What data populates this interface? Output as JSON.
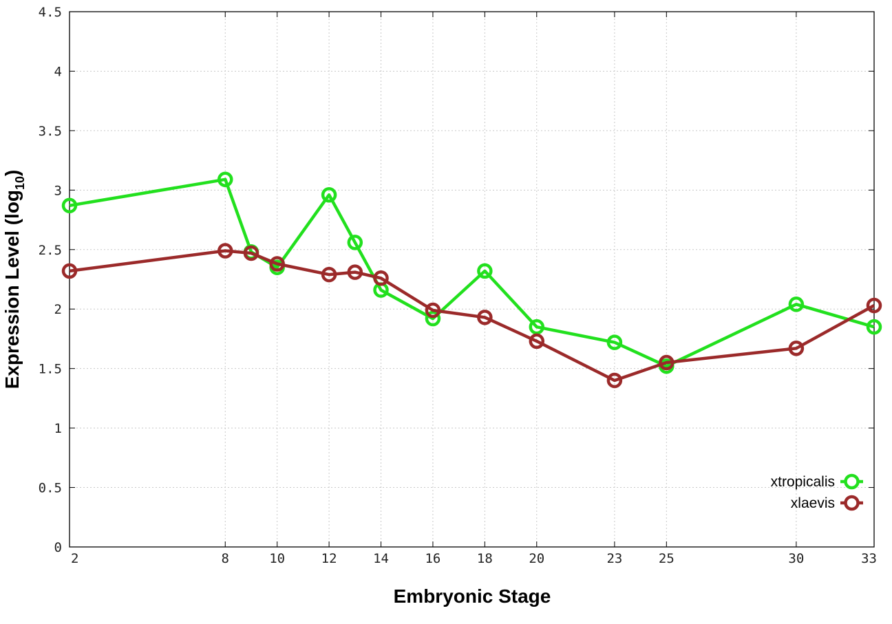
{
  "chart_data": {
    "type": "line",
    "title": "",
    "xlabel": "Embryonic Stage",
    "ylabel": "Expression Level (log",
    "ylabel_subscript": "10",
    "ylabel_suffix": ")",
    "xlim": [
      2,
      33
    ],
    "ylim": [
      0,
      4.5
    ],
    "x_ticks": [
      2,
      8,
      10,
      12,
      14,
      16,
      18,
      20,
      23,
      25,
      30,
      33
    ],
    "y_ticks": [
      0,
      0.5,
      1,
      1.5,
      2,
      2.5,
      3,
      3.5,
      4,
      4.5
    ],
    "y_tick_labels": [
      "0",
      "0.5",
      "1",
      "1.5",
      "2",
      "2.5",
      "3",
      "3.5",
      "4",
      "4.5"
    ],
    "grid": true,
    "legend_position": "bottom-right",
    "series": [
      {
        "name": "xtropicalis",
        "color": "#22e01e",
        "marker": "open-circle",
        "x": [
          2,
          8,
          9,
          10,
          12,
          13,
          14,
          16,
          18,
          20,
          23,
          25,
          30,
          33
        ],
        "y": [
          2.87,
          3.09,
          2.48,
          2.35,
          2.96,
          2.56,
          2.16,
          1.92,
          2.32,
          1.85,
          1.72,
          1.52,
          2.04,
          1.85
        ]
      },
      {
        "name": "xlaevis",
        "color": "#9b2a2a",
        "marker": "open-circle",
        "x": [
          2,
          8,
          9,
          10,
          12,
          13,
          14,
          16,
          18,
          20,
          23,
          25,
          30,
          33
        ],
        "y": [
          2.32,
          2.49,
          2.47,
          2.38,
          2.29,
          2.31,
          2.26,
          1.99,
          1.93,
          1.73,
          1.4,
          1.55,
          1.67,
          2.03
        ]
      }
    ]
  }
}
